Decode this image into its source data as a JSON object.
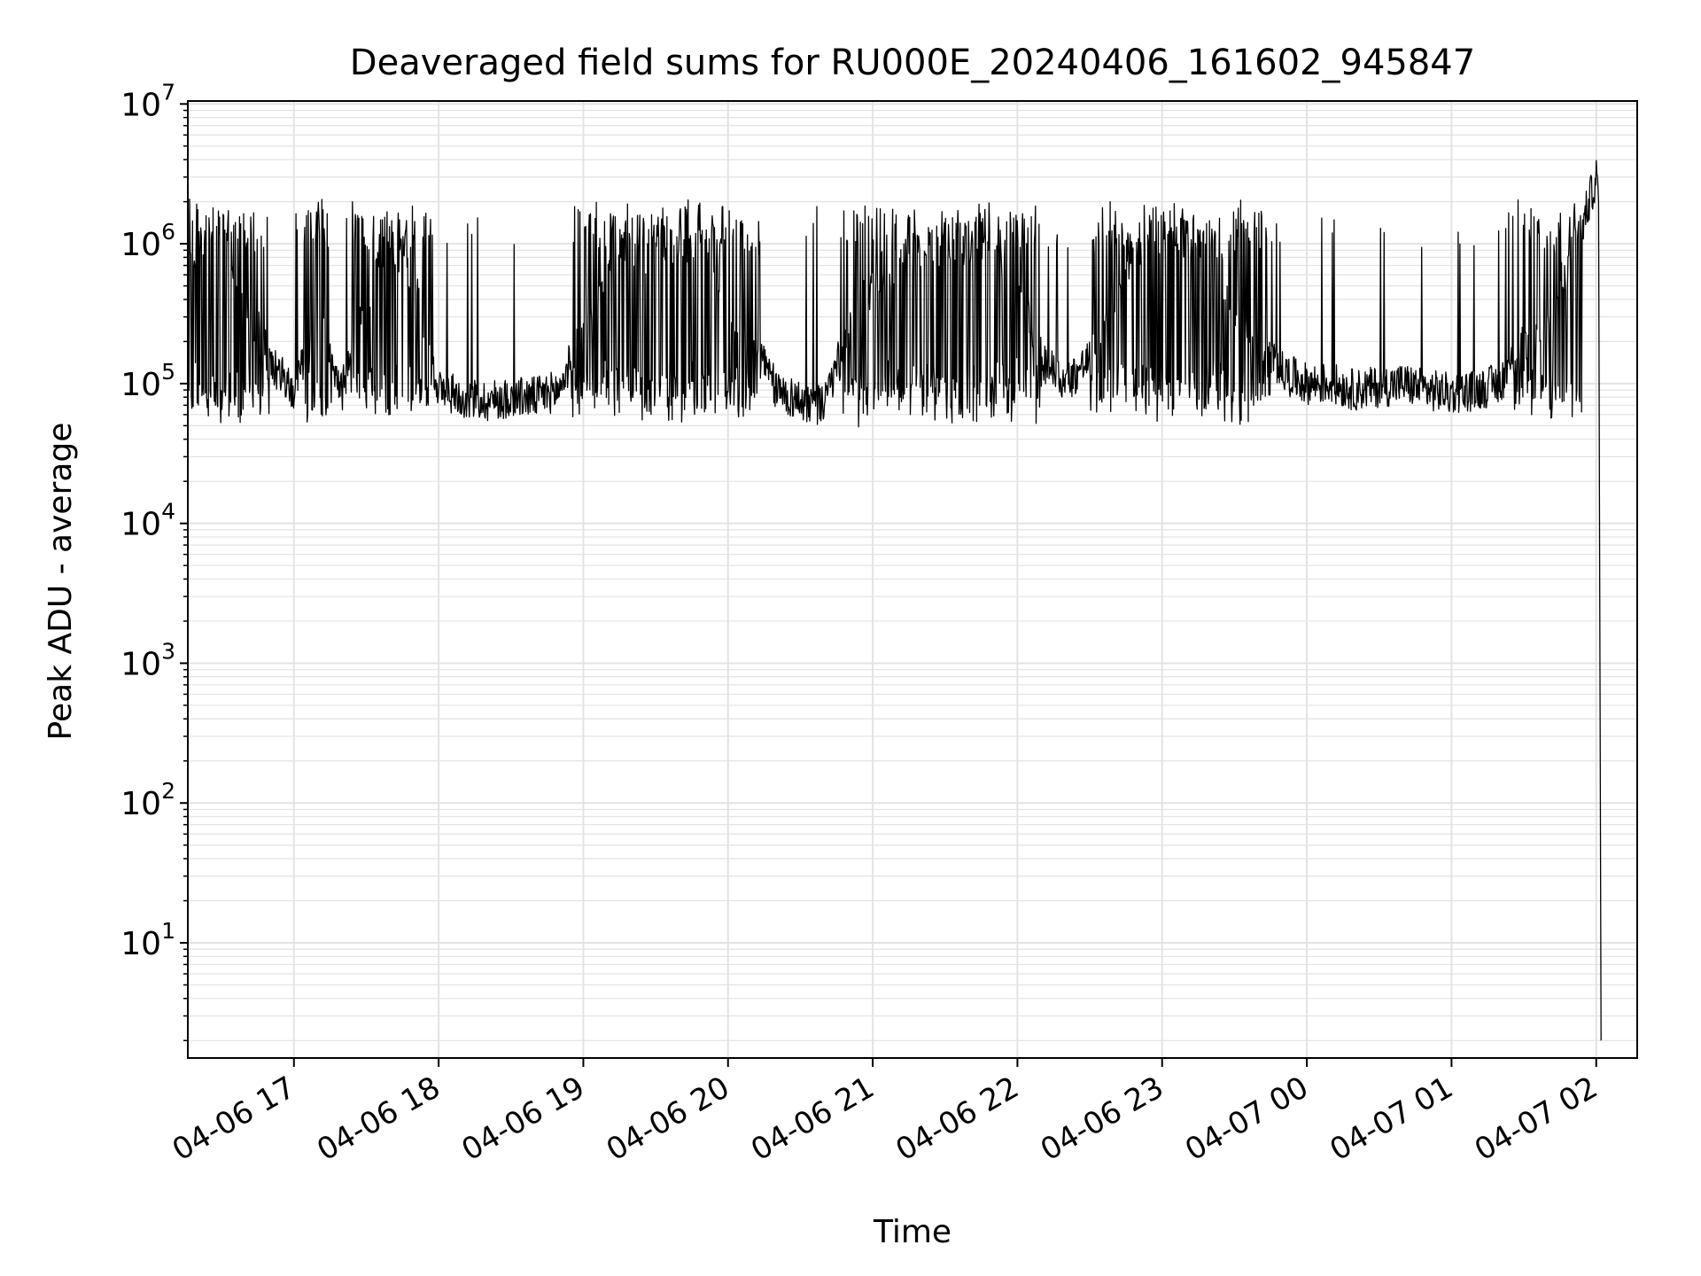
{
  "chart_data": {
    "type": "line",
    "title": "Deaveraged field sums for RU000E_20240406_161602_945847",
    "xlabel": "Time",
    "ylabel": "Peak ADU - average",
    "y_scale": "log",
    "ylim": [
      1.5,
      10500000
    ],
    "xlim": [
      "2024-04-06 16:16",
      "2024-04-07 02:17"
    ],
    "grid": true,
    "colors": {
      "line": "#000000",
      "grid": "#e3e3e3",
      "axes": "#000000",
      "background": "#ffffff"
    },
    "x_ticks": [
      {
        "value": "2024-04-06 17:00",
        "label": "04-06 17"
      },
      {
        "value": "2024-04-06 18:00",
        "label": "04-06 18"
      },
      {
        "value": "2024-04-06 19:00",
        "label": "04-06 19"
      },
      {
        "value": "2024-04-06 20:00",
        "label": "04-06 20"
      },
      {
        "value": "2024-04-06 21:00",
        "label": "04-06 21"
      },
      {
        "value": "2024-04-06 22:00",
        "label": "04-06 22"
      },
      {
        "value": "2024-04-06 23:00",
        "label": "04-06 23"
      },
      {
        "value": "2024-04-07 00:00",
        "label": "04-07 00"
      },
      {
        "value": "2024-04-07 01:00",
        "label": "04-07 01"
      },
      {
        "value": "2024-04-07 02:00",
        "label": "04-07 02"
      }
    ],
    "y_ticks": [
      {
        "exponent": 1,
        "base": "10",
        "sup": "1"
      },
      {
        "exponent": 2,
        "base": "10",
        "sup": "2"
      },
      {
        "exponent": 3,
        "base": "10",
        "sup": "3"
      },
      {
        "exponent": 4,
        "base": "10",
        "sup": "4"
      },
      {
        "exponent": 5,
        "base": "10",
        "sup": "5"
      },
      {
        "exponent": 6,
        "base": "10",
        "sup": "6"
      },
      {
        "exponent": 7,
        "base": "10",
        "sup": "7"
      }
    ],
    "series": [
      {
        "color": "#000000",
        "x": [
          "2024-04-06 16:16",
          "2024-04-06 16:20",
          "2024-04-06 16:25",
          "2024-04-06 16:30",
          "2024-04-06 16:35",
          "2024-04-06 16:40",
          "2024-04-06 16:45",
          "2024-04-06 16:50",
          "2024-04-06 16:55",
          "2024-04-06 17:00",
          "2024-04-06 17:10",
          "2024-04-06 17:20",
          "2024-04-06 17:30",
          "2024-04-06 17:40",
          "2024-04-06 17:50",
          "2024-04-06 18:00",
          "2024-04-06 18:10",
          "2024-04-06 18:20",
          "2024-04-06 18:30",
          "2024-04-06 18:40",
          "2024-04-06 18:50",
          "2024-04-06 19:00",
          "2024-04-06 19:10",
          "2024-04-06 19:20",
          "2024-04-06 19:30",
          "2024-04-06 19:40",
          "2024-04-06 19:50",
          "2024-04-06 20:00",
          "2024-04-06 20:10",
          "2024-04-06 20:20",
          "2024-04-06 20:30",
          "2024-04-06 20:40",
          "2024-04-06 20:50",
          "2024-04-06 21:00",
          "2024-04-06 21:10",
          "2024-04-06 21:20",
          "2024-04-06 21:30",
          "2024-04-06 21:40",
          "2024-04-06 21:50",
          "2024-04-06 22:00",
          "2024-04-06 22:10",
          "2024-04-06 22:20",
          "2024-04-06 22:30",
          "2024-04-06 22:40",
          "2024-04-06 22:50",
          "2024-04-06 23:00",
          "2024-04-06 23:10",
          "2024-04-06 23:20",
          "2024-04-06 23:30",
          "2024-04-06 23:40",
          "2024-04-06 23:50",
          "2024-04-07 00:00",
          "2024-04-07 00:10",
          "2024-04-07 00:20",
          "2024-04-07 00:30",
          "2024-04-07 00:40",
          "2024-04-07 00:50",
          "2024-04-07 01:00",
          "2024-04-07 01:10",
          "2024-04-07 01:20",
          "2024-04-07 01:30",
          "2024-04-07 01:40",
          "2024-04-07 01:50",
          "2024-04-07 01:55",
          "2024-04-07 02:00",
          "2024-04-07 02:01",
          "2024-04-07 02:02"
        ],
        "y": [
          700000,
          900000,
          1200000,
          1300000,
          600000,
          350000,
          250000,
          150000,
          110000,
          90000,
          300000,
          90000,
          400000,
          1000000,
          600000,
          90000,
          80000,
          75000,
          80000,
          80000,
          90000,
          250000,
          600000,
          900000,
          800000,
          1000000,
          900000,
          400000,
          200000,
          90000,
          75000,
          70000,
          250000,
          500000,
          700000,
          900000,
          1000000,
          1000000,
          800000,
          600000,
          150000,
          100000,
          150000,
          400000,
          1000000,
          1100000,
          1100000,
          1000000,
          300000,
          200000,
          120000,
          100000,
          100000,
          90000,
          95000,
          100000,
          90000,
          85000,
          90000,
          100000,
          200000,
          300000,
          800000,
          1500000,
          3000000,
          2000000,
          2
        ]
      }
    ]
  }
}
